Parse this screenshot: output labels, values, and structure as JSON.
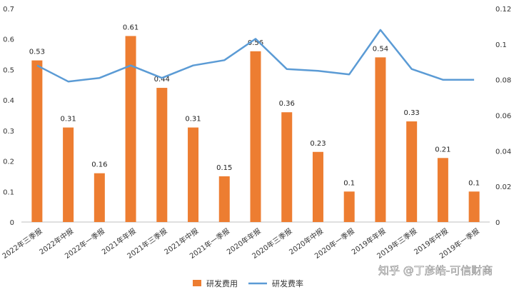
{
  "chart_data": {
    "type": "bar+line",
    "categories": [
      "2022年三季报",
      "2022年中报",
      "2022年一季报",
      "2021年年报",
      "2021年三季报",
      "2021年中报",
      "2021年一季报",
      "2020年年报",
      "2020年三季报",
      "2020年中报",
      "2020年一季报",
      "2019年年报",
      "2019年三季报",
      "2019年中报",
      "2019年一季报"
    ],
    "series": [
      {
        "name": "研发费用",
        "type": "bar",
        "axis": "left",
        "color": "#ED7D31",
        "values": [
          0.53,
          0.31,
          0.16,
          0.61,
          0.44,
          0.31,
          0.15,
          0.56,
          0.36,
          0.23,
          0.1,
          0.54,
          0.33,
          0.21,
          0.1
        ]
      },
      {
        "name": "研发费率",
        "type": "line",
        "axis": "right",
        "color": "#5B9BD5",
        "values": [
          0.088,
          0.079,
          0.081,
          0.088,
          0.081,
          0.088,
          0.091,
          0.103,
          0.086,
          0.085,
          0.083,
          0.108,
          0.086,
          0.08,
          0.08
        ]
      }
    ],
    "y_left": {
      "range": [
        0,
        0.7
      ],
      "ticks": [
        "0",
        "0.1",
        "0.2",
        "0.3",
        "0.4",
        "0.5",
        "0.6",
        "0.7"
      ]
    },
    "y_right": {
      "range": [
        0,
        0.12
      ],
      "ticks": [
        "0",
        "0.02",
        "0.04",
        "0.06",
        "0.08",
        "0.1",
        "0.12"
      ]
    },
    "data_labels": [
      "0.53",
      "0.31",
      "0.16",
      "0.61",
      "0.44",
      "0.31",
      "0.15",
      "0.56",
      "0.36",
      "0.23",
      "0.1",
      "0.54",
      "0.33",
      "0.21",
      "0.1"
    ],
    "legend": {
      "position": "bottom",
      "items": [
        "研发费用",
        "研发费率"
      ]
    },
    "grid": false
  },
  "watermark": "知乎 @丁彦皓-可信财商"
}
